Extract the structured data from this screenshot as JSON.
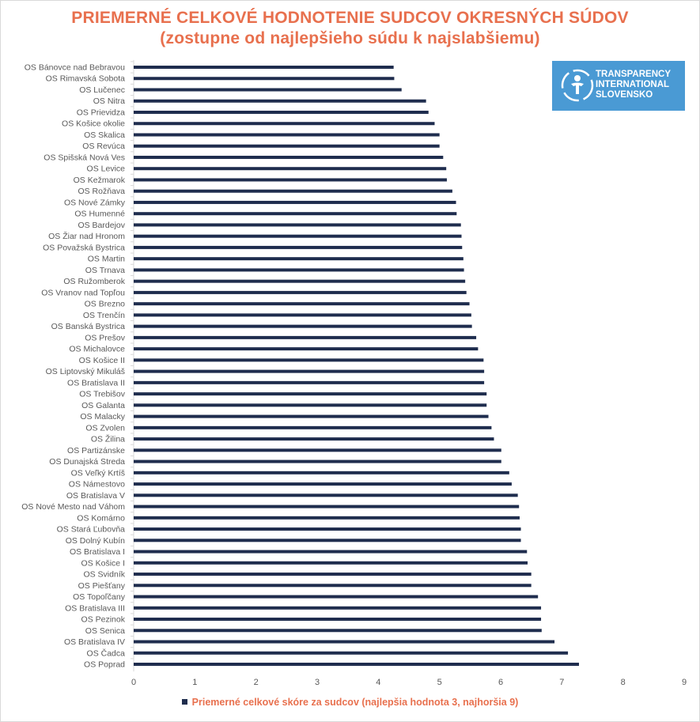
{
  "title_line1": "PRIEMERNÉ CELKOVÉ HODNOTENIE SUDCOV OKRESNÝCH SÚDOV",
  "title_line2": "(zostupne od najlepšieho súdu k najslabšiemu)",
  "logo": {
    "line1": "TRANSPARENCY",
    "line2": "INTERNATIONAL",
    "line3": "SLOVENSKO",
    "background": "#4a9ad4"
  },
  "colors": {
    "bar": "#1f2d4e",
    "title": "#e8704e",
    "axis": "#d9d9d9",
    "text": "#595959"
  },
  "chart_data": {
    "type": "bar",
    "orientation": "horizontal",
    "title": "PRIEMERNÉ CELKOVÉ HODNOTENIE SUDCOV OKRESNÝCH SÚDOV (zostupne od najlepšieho súdu k najslabšiemu)",
    "xlabel": "",
    "ylabel": "",
    "xlim": [
      0,
      9
    ],
    "x_ticks": [
      0,
      1,
      2,
      3,
      4,
      5,
      6,
      7,
      8,
      9
    ],
    "grid": false,
    "legend": "bottom-center",
    "series": [
      {
        "name": "Priemerné celkové skóre za sudcov (najlepšia hodnota 3, najhoršia 9)",
        "color": "#1f2d4e"
      }
    ],
    "categories": [
      "OS Bánovce nad Bebravou",
      "OS Rimavská Sobota",
      "OS Lučenec",
      "OS Nitra",
      "OS Prievidza",
      "OS Košice okolie",
      "OS Skalica",
      "OS Revúca",
      "OS Spišská Nová Ves",
      "OS Levice",
      "OS Kežmarok",
      "OS Rožňava",
      "OS Nové Zámky",
      "OS Humenné",
      "OS Bardejov",
      "OS Žiar nad Hronom",
      "OS Považská Bystrica",
      "OS Martin",
      "OS Trnava",
      "OS Ružomberok",
      "OS Vranov nad Topľou",
      "OS Brezno",
      "OS Trenčín",
      "OS Banská Bystrica",
      "OS Prešov",
      "OS Michalovce",
      "OS Košice II",
      "OS Liptovský Mikuláš",
      "OS Bratislava II",
      "OS Trebišov",
      "OS Galanta",
      "OS Malacky",
      "OS Zvolen",
      "OS Žilina",
      "OS Partizánske",
      "OS Dunajská Streda",
      "OS Veľký Krtíš",
      "OS Námestovo",
      "OS Bratislava V",
      "OS Nové Mesto nad Váhom",
      "OS Komárno",
      "OS Stará Ľubovňa",
      "OS Dolný Kubín",
      "OS Bratislava I",
      "OS Košice I",
      "OS Svidník",
      "OS Piešťany",
      "OS Topoľčany",
      "OS Bratislava III",
      "OS Pezinok",
      "OS Senica",
      "OS Bratislava IV",
      "OS Čadca",
      "OS Poprad"
    ],
    "values": [
      4.25,
      4.26,
      4.38,
      4.78,
      4.82,
      4.92,
      5.0,
      5.0,
      5.06,
      5.11,
      5.12,
      5.21,
      5.27,
      5.28,
      5.35,
      5.36,
      5.37,
      5.39,
      5.4,
      5.42,
      5.44,
      5.49,
      5.52,
      5.53,
      5.6,
      5.63,
      5.72,
      5.73,
      5.73,
      5.77,
      5.77,
      5.8,
      5.85,
      5.89,
      6.01,
      6.01,
      6.14,
      6.18,
      6.28,
      6.3,
      6.31,
      6.33,
      6.33,
      6.43,
      6.44,
      6.5,
      6.5,
      6.61,
      6.66,
      6.66,
      6.67,
      6.88,
      7.1,
      7.28
    ]
  },
  "legend_label": "Priemerné celkové skóre za sudcov (najlepšia hodnota 3, najhoršia 9)"
}
